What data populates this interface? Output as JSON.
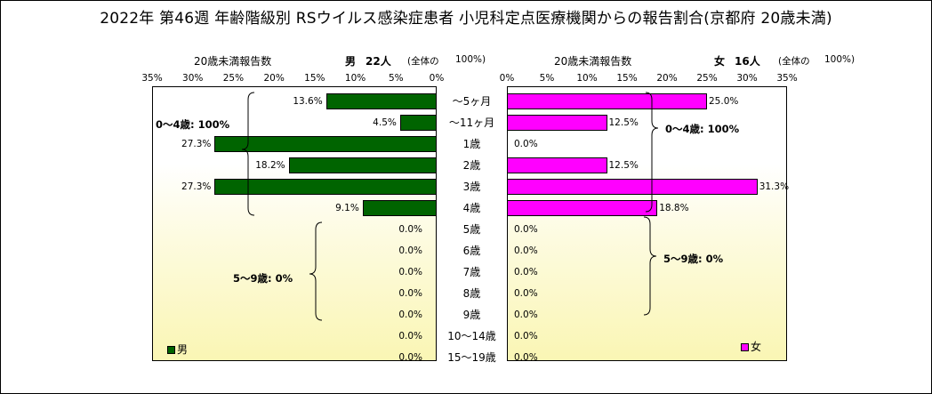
{
  "title": "2022年 第46週 年齢階級別 RSウイルス感染症患者 小児科定点医療機関からの報告割合(京都府 20歳未満)",
  "left_header": {
    "report": "20歳未満報告数",
    "sex": "男",
    "count": "22人",
    "note": "(全体の",
    "pct": "100%)"
  },
  "right_header": {
    "report": "20歳未満報告数",
    "sex": "女",
    "count": "16人",
    "note": "(全体の",
    "pct": "100%)"
  },
  "left_ticks": [
    "35%",
    "30%",
    "25%",
    "20%",
    "15%",
    "10%",
    "5%",
    "0%"
  ],
  "right_ticks": [
    "0%",
    "5%",
    "10%",
    "15%",
    "20%",
    "25%",
    "30%",
    "35%"
  ],
  "annotations": {
    "male_0_4": "0～4歳: 100%",
    "male_5_9": "5～9歳: 0%",
    "female_0_4": "0～4歳: 100%",
    "female_5_9": "5～9歳: 0%"
  },
  "legend": {
    "male": "男",
    "female": "女"
  },
  "colors": {
    "male": "#006400",
    "female": "#ff00ff"
  },
  "chart_data": {
    "type": "bar",
    "orientation": "horizontal",
    "layout": "population-pyramid",
    "categories": [
      "～5ヶ月",
      "～11ヶ月",
      "1歳",
      "2歳",
      "3歳",
      "4歳",
      "5歳",
      "6歳",
      "7歳",
      "8歳",
      "9歳",
      "10～14歳",
      "15～19歳"
    ],
    "series": [
      {
        "name": "男",
        "values": [
          13.6,
          4.5,
          27.3,
          18.2,
          27.3,
          9.1,
          0.0,
          0.0,
          0.0,
          0.0,
          0.0,
          0.0,
          0.0
        ],
        "labels": [
          "13.6%",
          "4.5%",
          "27.3%",
          "18.2%",
          "27.3%",
          "9.1%",
          "0.0%",
          "0.0%",
          "0.0%",
          "0.0%",
          "0.0%",
          "0.0%",
          "0.0%"
        ]
      },
      {
        "name": "女",
        "values": [
          25.0,
          12.5,
          0.0,
          12.5,
          31.3,
          18.8,
          0.0,
          0.0,
          0.0,
          0.0,
          0.0,
          0.0,
          0.0
        ],
        "labels": [
          "25.0%",
          "12.5%",
          "0.0%",
          "12.5%",
          "31.3%",
          "18.8%",
          "0.0%",
          "0.0%",
          "0.0%",
          "0.0%",
          "0.0%",
          "0.0%",
          "0.0%"
        ]
      }
    ],
    "xlim": [
      0,
      35
    ],
    "grid": false,
    "legend": "bottom-corners"
  }
}
